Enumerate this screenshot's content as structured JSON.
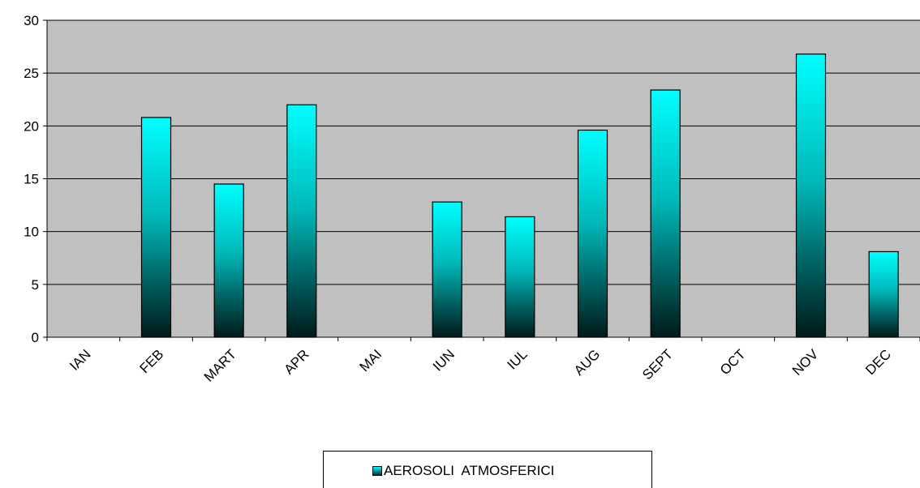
{
  "chart_data": {
    "type": "bar",
    "categories": [
      "IAN",
      "FEB",
      "MART",
      "APR",
      "MAI",
      "IUN",
      "IUL",
      "AUG",
      "SEPT",
      "OCT",
      "NOV",
      "DEC"
    ],
    "series": [
      {
        "name": "AEROSOLI  ATMOSFERICI",
        "values": [
          0,
          20.8,
          14.5,
          22.0,
          0,
          12.8,
          11.4,
          19.6,
          23.4,
          0,
          26.8,
          8.1
        ]
      }
    ],
    "title": "",
    "xlabel": "",
    "ylabel": "",
    "ylim": [
      0,
      30
    ],
    "yticks": [
      0,
      5,
      10,
      15,
      20,
      25,
      30
    ],
    "grid": true,
    "legend_position": "bottom",
    "colors": {
      "plot_background": "#c0c0c0",
      "bar_top": "#00ffff",
      "bar_mid": "#008b8b",
      "bar_bottom": "#001a1a",
      "gridline": "#000000"
    }
  }
}
